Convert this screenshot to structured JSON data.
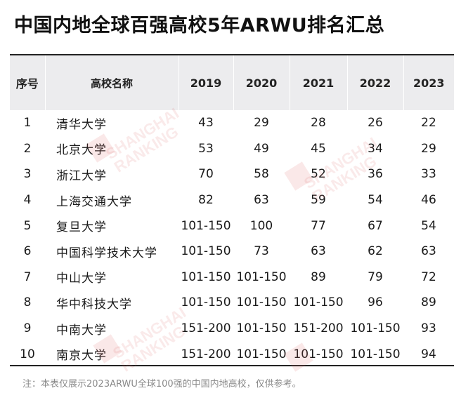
{
  "title": "中国内地全球百强高校5年ARWU排名汇总",
  "watermark": {
    "line1": "SHANGHAI",
    "line2": "RANKING"
  },
  "table": {
    "headers": [
      "序号",
      "高校名称",
      "2019",
      "2020",
      "2021",
      "2022",
      "2023"
    ],
    "rows": [
      [
        "1",
        "清华大学",
        "43",
        "29",
        "28",
        "26",
        "22"
      ],
      [
        "2",
        "北京大学",
        "53",
        "49",
        "45",
        "34",
        "29"
      ],
      [
        "3",
        "浙江大学",
        "70",
        "58",
        "52",
        "36",
        "33"
      ],
      [
        "4",
        "上海交通大学",
        "82",
        "63",
        "59",
        "54",
        "46"
      ],
      [
        "5",
        "复旦大学",
        "101-150",
        "100",
        "77",
        "67",
        "54"
      ],
      [
        "6",
        "中国科学技术大学",
        "101-150",
        "73",
        "63",
        "62",
        "63"
      ],
      [
        "7",
        "中山大学",
        "101-150",
        "101-150",
        "89",
        "79",
        "72"
      ],
      [
        "8",
        "华中科技大学",
        "101-150",
        "101-150",
        "101-150",
        "96",
        "89"
      ],
      [
        "9",
        "中南大学",
        "151-200",
        "101-150",
        "151-200",
        "101-150",
        "93"
      ],
      [
        "10",
        "南京大学",
        "151-200",
        "101-150",
        "101-150",
        "101-150",
        "94"
      ]
    ]
  },
  "note": "注：本表仅展示2023ARWU全球100强的中国内地高校，仅供参考。"
}
